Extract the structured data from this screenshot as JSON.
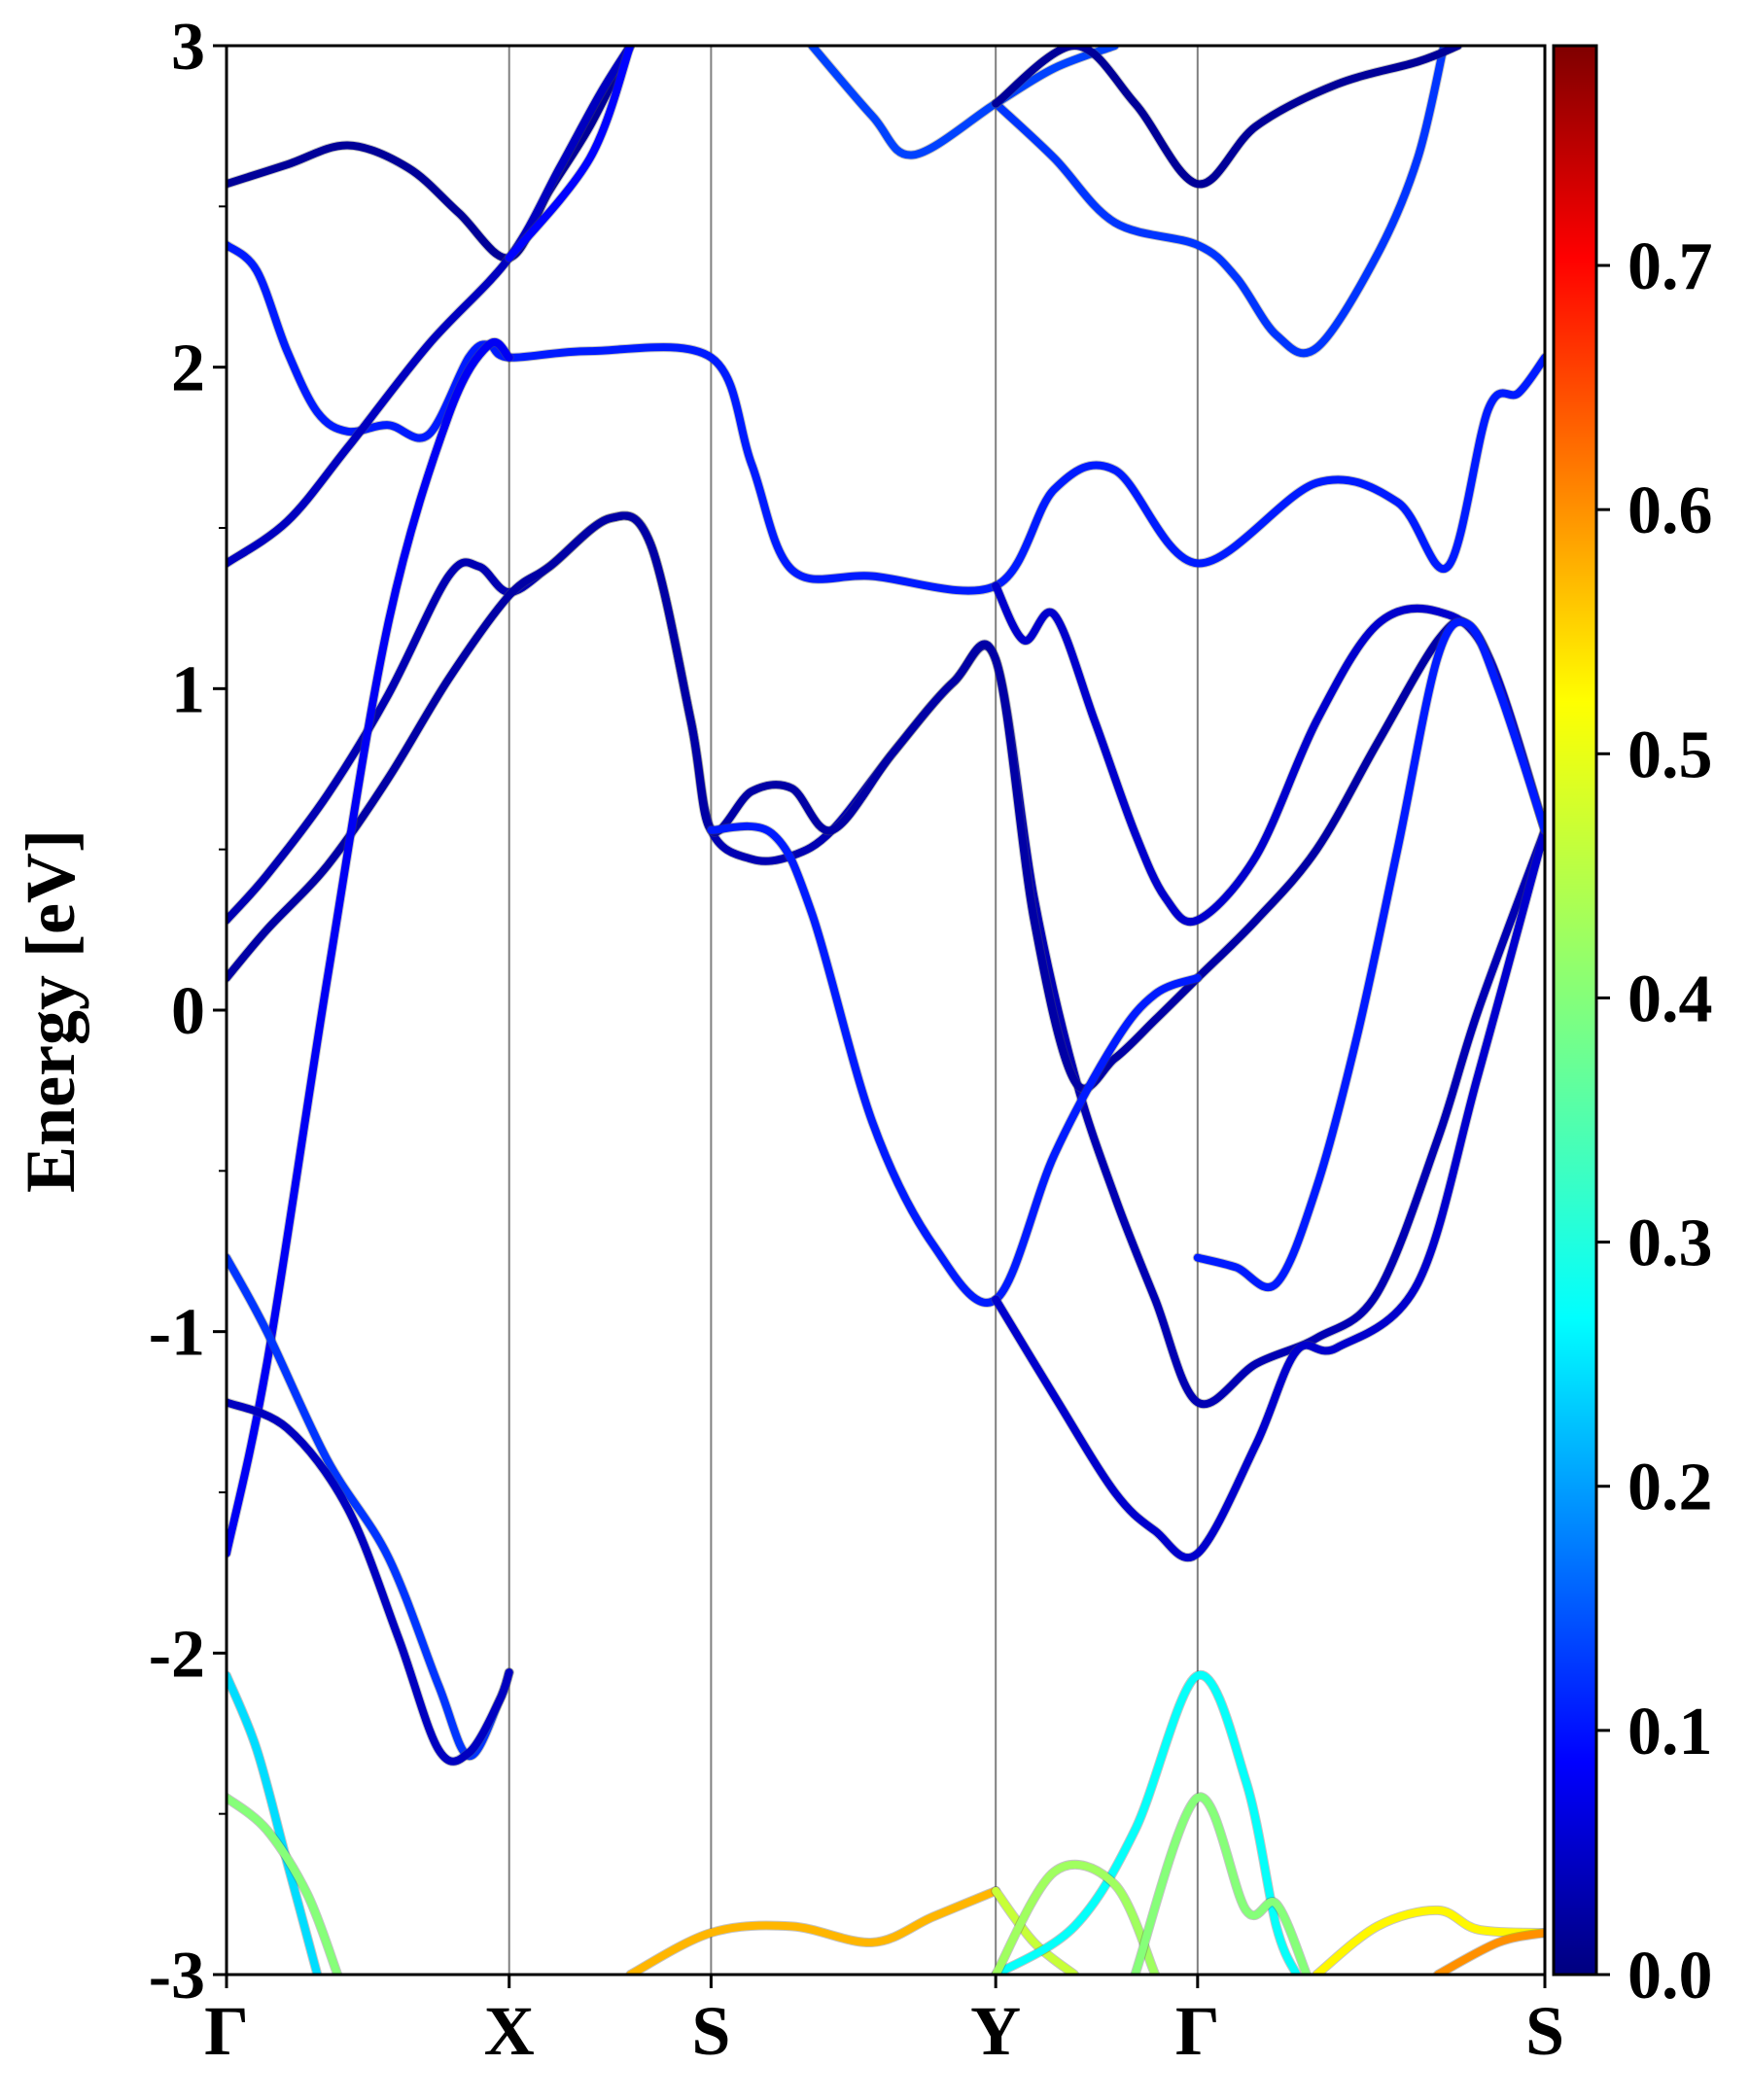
{
  "chart_data": {
    "type": "line",
    "title": "",
    "xlabel": "",
    "ylabel": "Energy [eV]",
    "ylim": [
      -3,
      3
    ],
    "xlim": [
      0,
      6.53
    ],
    "grid": false,
    "legend": "none",
    "x_ticks": [
      {
        "label": "Γ",
        "x": 0.0
      },
      {
        "label": "X",
        "x": 1.4
      },
      {
        "label": "S",
        "x": 2.4
      },
      {
        "label": "Y",
        "x": 3.81
      },
      {
        "label": "Γ",
        "x": 4.81
      },
      {
        "label": "S",
        "x": 6.53
      }
    ],
    "y_ticks": [
      -3,
      -2,
      -1,
      0,
      1,
      2,
      3
    ],
    "colorbar": {
      "colormap": "jet",
      "min": 0.0,
      "max": 0.79,
      "ticks": [
        "0.0",
        "0.1",
        "0.2",
        "0.3",
        "0.4",
        "0.5",
        "0.6",
        "0.7"
      ]
    },
    "series": [
      {
        "color_value": 0.02,
        "points": [
          [
            0,
            2.57
          ],
          [
            0.3,
            2.63
          ],
          [
            0.6,
            2.69
          ],
          [
            0.9,
            2.62
          ],
          [
            1.15,
            2.48
          ],
          [
            1.4,
            2.34
          ],
          [
            1.6,
            2.55
          ],
          [
            1.8,
            2.75
          ],
          [
            2.0,
            3.0
          ]
        ]
      },
      {
        "color_value": 0.12,
        "points": [
          [
            0,
            2.38
          ],
          [
            0.15,
            2.3
          ],
          [
            0.3,
            2.05
          ],
          [
            0.45,
            1.86
          ],
          [
            0.6,
            1.8
          ],
          [
            0.8,
            1.82
          ],
          [
            1.0,
            1.79
          ],
          [
            1.2,
            2.03
          ],
          [
            1.3,
            2.07
          ],
          [
            1.4,
            2.03
          ],
          [
            1.8,
            2.05
          ],
          [
            2.4,
            2.03
          ],
          [
            2.6,
            1.7
          ],
          [
            2.8,
            1.37
          ],
          [
            3.2,
            1.35
          ],
          [
            3.81,
            1.32
          ],
          [
            4.1,
            1.62
          ],
          [
            4.4,
            1.68
          ],
          [
            4.81,
            1.39
          ],
          [
            5.4,
            1.64
          ],
          [
            5.8,
            1.58
          ],
          [
            6.05,
            1.38
          ],
          [
            6.25,
            1.87
          ],
          [
            6.4,
            1.92
          ],
          [
            6.53,
            2.03
          ]
        ]
      },
      {
        "color_value": 0.05,
        "points": [
          [
            0,
            1.39
          ],
          [
            0.3,
            1.52
          ],
          [
            0.6,
            1.75
          ],
          [
            1.0,
            2.07
          ],
          [
            1.4,
            2.34
          ],
          [
            1.65,
            2.62
          ],
          [
            1.85,
            2.85
          ],
          [
            2.0,
            3.0
          ]
        ]
      },
      {
        "color_value": 0.04,
        "points": [
          [
            0,
            0.28
          ],
          [
            0.2,
            0.42
          ],
          [
            0.5,
            0.67
          ],
          [
            0.8,
            0.98
          ],
          [
            1.1,
            1.35
          ],
          [
            1.25,
            1.38
          ],
          [
            1.4,
            1.3
          ],
          [
            1.6,
            1.38
          ],
          [
            1.9,
            1.53
          ],
          [
            2.1,
            1.45
          ],
          [
            2.3,
            0.9
          ],
          [
            2.4,
            0.56
          ],
          [
            2.6,
            0.47
          ],
          [
            2.8,
            0.48
          ],
          [
            3.0,
            0.56
          ],
          [
            3.3,
            0.8
          ],
          [
            3.6,
            1.02
          ],
          [
            3.81,
            1.09
          ],
          [
            4.0,
            0.35
          ],
          [
            4.2,
            -0.2
          ],
          [
            4.4,
            -0.58
          ],
          [
            4.6,
            -0.9
          ],
          [
            4.81,
            -1.22
          ],
          [
            5.1,
            -1.1
          ],
          [
            5.4,
            -1.02
          ],
          [
            5.7,
            -0.88
          ],
          [
            6.0,
            -0.4
          ],
          [
            6.2,
            0.0
          ],
          [
            6.53,
            0.56
          ]
        ]
      },
      {
        "color_value": 0.03,
        "points": [
          [
            0,
            0.1
          ],
          [
            0.2,
            0.25
          ],
          [
            0.5,
            0.45
          ],
          [
            0.8,
            0.72
          ],
          [
            1.1,
            1.03
          ],
          [
            1.4,
            1.29
          ],
          [
            1.6,
            1.38
          ],
          [
            1.9,
            1.53
          ],
          [
            2.1,
            1.45
          ],
          [
            2.3,
            0.9
          ],
          [
            2.4,
            0.56
          ],
          [
            2.6,
            0.68
          ],
          [
            2.8,
            0.69
          ],
          [
            3.0,
            0.56
          ],
          [
            3.3,
            0.8
          ],
          [
            3.6,
            1.02
          ],
          [
            3.81,
            1.09
          ],
          [
            4.0,
            0.28
          ],
          [
            4.2,
            -0.22
          ],
          [
            4.4,
            -0.15
          ],
          [
            4.6,
            -0.03
          ],
          [
            4.81,
            0.1
          ],
          [
            5.1,
            0.28
          ],
          [
            5.4,
            0.5
          ],
          [
            5.7,
            0.83
          ],
          [
            6.0,
            1.15
          ],
          [
            6.15,
            1.2
          ],
          [
            6.3,
            1.02
          ],
          [
            6.53,
            0.56
          ]
        ]
      },
      {
        "color_value": 0.09,
        "points": [
          [
            0,
            -1.69
          ],
          [
            0.2,
            -1.1
          ],
          [
            0.5,
            0.1
          ],
          [
            0.8,
            1.2
          ],
          [
            1.1,
            1.85
          ],
          [
            1.3,
            2.07
          ],
          [
            1.4,
            2.03
          ]
        ]
      },
      {
        "color_value": 0.1,
        "points": [
          [
            1.4,
            2.34
          ],
          [
            1.8,
            2.65
          ],
          [
            2.0,
            3.0
          ]
        ]
      },
      {
        "color_value": 0.12,
        "points": [
          [
            2.4,
            0.56
          ],
          [
            2.7,
            0.55
          ],
          [
            2.9,
            0.3
          ],
          [
            3.2,
            -0.35
          ],
          [
            3.5,
            -0.73
          ],
          [
            3.81,
            -0.9
          ],
          [
            4.1,
            -0.45
          ],
          [
            4.4,
            -0.1
          ],
          [
            4.6,
            0.05
          ],
          [
            4.81,
            0.1
          ]
        ]
      },
      {
        "color_value": 0.06,
        "points": [
          [
            3.81,
            -0.9
          ],
          [
            4.1,
            -1.2
          ],
          [
            4.4,
            -1.5
          ],
          [
            4.6,
            -1.62
          ],
          [
            4.81,
            -1.69
          ],
          [
            5.1,
            -1.35
          ],
          [
            5.3,
            -1.06
          ],
          [
            5.5,
            -1.05
          ],
          [
            5.9,
            -0.85
          ],
          [
            6.2,
            -0.2
          ],
          [
            6.53,
            0.56
          ]
        ]
      },
      {
        "color_value": 0.06,
        "points": [
          [
            3.81,
            1.32
          ],
          [
            3.95,
            1.15
          ],
          [
            4.1,
            1.23
          ],
          [
            4.3,
            0.9
          ],
          [
            4.5,
            0.55
          ],
          [
            4.65,
            0.35
          ],
          [
            4.81,
            0.28
          ],
          [
            5.1,
            0.48
          ],
          [
            5.4,
            0.9
          ],
          [
            5.7,
            1.2
          ],
          [
            6.0,
            1.24
          ],
          [
            6.25,
            1.1
          ],
          [
            6.53,
            0.56
          ]
        ]
      },
      {
        "color_value": 0.12,
        "points": [
          [
            4.81,
            -0.77
          ],
          [
            5.0,
            -0.8
          ],
          [
            5.2,
            -0.85
          ],
          [
            5.4,
            -0.55
          ],
          [
            5.6,
            -0.08
          ],
          [
            5.8,
            0.5
          ],
          [
            6.0,
            1.1
          ],
          [
            6.15,
            1.2
          ],
          [
            6.3,
            1.0
          ],
          [
            6.53,
            0.56
          ]
        ]
      },
      {
        "color_value": 0.14,
        "points": [
          [
            3.81,
            2.82
          ],
          [
            4.1,
            2.65
          ],
          [
            4.4,
            2.45
          ],
          [
            4.81,
            2.38
          ],
          [
            5.0,
            2.28
          ],
          [
            5.2,
            2.1
          ],
          [
            5.4,
            2.06
          ],
          [
            5.7,
            2.35
          ],
          [
            5.9,
            2.65
          ],
          [
            6.03,
            3.0
          ]
        ]
      },
      {
        "color_value": 0.15,
        "points": [
          [
            2.9,
            3.0
          ],
          [
            3.2,
            2.78
          ],
          [
            3.4,
            2.66
          ],
          [
            3.81,
            2.82
          ],
          [
            4.1,
            2.93
          ],
          [
            4.4,
            3.0
          ]
        ]
      },
      {
        "color_value": 0.02,
        "points": [
          [
            3.81,
            2.82
          ],
          [
            4.2,
            3.0
          ],
          [
            4.5,
            2.82
          ],
          [
            4.81,
            2.57
          ],
          [
            5.1,
            2.75
          ],
          [
            5.5,
            2.88
          ],
          [
            5.9,
            2.95
          ],
          [
            6.1,
            3.0
          ]
        ]
      },
      {
        "color_value": 0.14,
        "points": [
          [
            0,
            -0.77
          ],
          [
            0.2,
            -1.0
          ],
          [
            0.5,
            -1.4
          ],
          [
            0.8,
            -1.7
          ],
          [
            1.05,
            -2.1
          ],
          [
            1.2,
            -2.32
          ],
          [
            1.35,
            -2.15
          ],
          [
            1.4,
            -2.06
          ]
        ]
      },
      {
        "color_value": 0.05,
        "points": [
          [
            0,
            -1.22
          ],
          [
            0.3,
            -1.3
          ],
          [
            0.6,
            -1.55
          ],
          [
            0.85,
            -1.95
          ],
          [
            1.05,
            -2.3
          ],
          [
            1.2,
            -2.31
          ],
          [
            1.35,
            -2.15
          ],
          [
            1.4,
            -2.06
          ]
        ]
      },
      {
        "color_value": 0.27,
        "points": [
          [
            0,
            -2.07
          ],
          [
            0.15,
            -2.3
          ],
          [
            0.3,
            -2.65
          ],
          [
            0.45,
            -3.0
          ]
        ]
      },
      {
        "color_value": 0.4,
        "points": [
          [
            0,
            -2.45
          ],
          [
            0.2,
            -2.55
          ],
          [
            0.4,
            -2.75
          ],
          [
            0.55,
            -3.0
          ]
        ]
      },
      {
        "color_value": 0.55,
        "points": [
          [
            2.0,
            -3.0
          ],
          [
            2.4,
            -2.87
          ],
          [
            2.8,
            -2.85
          ],
          [
            3.2,
            -2.9
          ],
          [
            3.5,
            -2.82
          ],
          [
            3.81,
            -2.74
          ]
        ]
      },
      {
        "color_value": 0.45,
        "points": [
          [
            3.81,
            -2.74
          ],
          [
            4.0,
            -2.9
          ],
          [
            4.2,
            -3.0
          ]
        ]
      },
      {
        "color_value": 0.3,
        "points": [
          [
            3.81,
            -3.0
          ],
          [
            4.2,
            -2.85
          ],
          [
            4.5,
            -2.55
          ],
          [
            4.81,
            -2.07
          ],
          [
            5.05,
            -2.4
          ],
          [
            5.2,
            -2.85
          ],
          [
            5.3,
            -3.0
          ]
        ]
      },
      {
        "color_value": 0.42,
        "points": [
          [
            3.81,
            -3.0
          ],
          [
            4.1,
            -2.68
          ],
          [
            4.4,
            -2.72
          ],
          [
            4.6,
            -3.0
          ]
        ]
      },
      {
        "color_value": 0.4,
        "points": [
          [
            4.5,
            -3.0
          ],
          [
            4.81,
            -2.45
          ],
          [
            5.05,
            -2.8
          ],
          [
            5.2,
            -2.78
          ],
          [
            5.35,
            -3.0
          ]
        ]
      },
      {
        "color_value": 0.5,
        "points": [
          [
            5.4,
            -3.0
          ],
          [
            5.7,
            -2.85
          ],
          [
            6.0,
            -2.8
          ],
          [
            6.2,
            -2.86
          ],
          [
            6.53,
            -2.87
          ]
        ]
      },
      {
        "color_value": 0.58,
        "points": [
          [
            6.0,
            -3.0
          ],
          [
            6.3,
            -2.9
          ],
          [
            6.53,
            -2.87
          ]
        ]
      }
    ]
  }
}
